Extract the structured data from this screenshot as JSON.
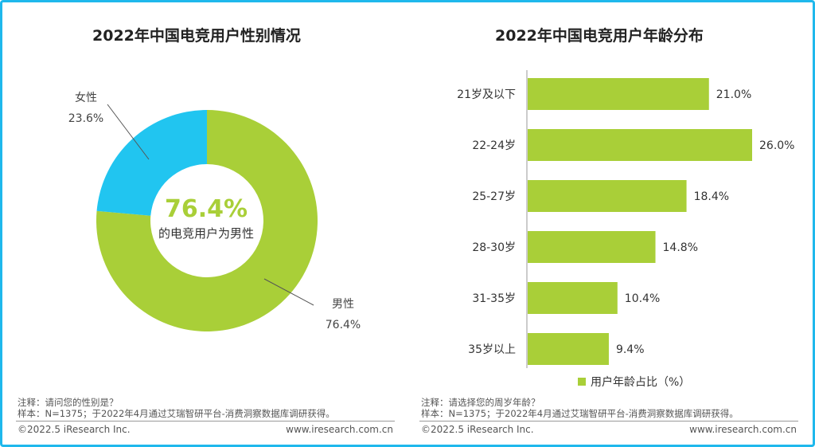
{
  "colors": {
    "green": "#a9cf38",
    "blue": "#21c5f0",
    "border": "#1fb8ec"
  },
  "left_panel": {
    "title": "2022年中国电竞用户性别情况",
    "center_value": "76.4%",
    "center_caption": "的电竞用户为男性",
    "note_1": "注释：请问您的性别是？",
    "note_2": "样本：N=1375；于2022年4月通过艾瑞智研平台-消费洞察数据库调研获得。",
    "footer_left": "©2022.5 iResearch Inc.",
    "footer_right": "www.iresearch.com.cn"
  },
  "right_panel": {
    "title": "2022年中国电竞用户年龄分布",
    "note_1": "注释：请选择您的周岁年龄？",
    "note_2": "样本：N=1375；于2022年4月通过艾瑞智研平台-消费洞察数据库调研获得。",
    "footer_left": "©2022.5 iResearch Inc.",
    "footer_right": "www.iresearch.com.cn"
  },
  "chart_data": [
    {
      "type": "pie",
      "title": "2022年中国电竞用户性别情况",
      "donut": true,
      "labels": [
        "男性",
        "女性"
      ],
      "values": [
        76.4,
        23.6
      ],
      "value_labels": [
        "76.4%",
        "23.6%"
      ],
      "colors": [
        "#a9cf38",
        "#21c5f0"
      ]
    },
    {
      "type": "bar",
      "orientation": "horizontal",
      "title": "2022年中国电竞用户年龄分布",
      "categories": [
        "21岁及以下",
        "22-24岁",
        "25-27岁",
        "28-30岁",
        "31-35岁",
        "35岁以上"
      ],
      "series": [
        {
          "name": "用户年龄占比（%）",
          "values": [
            21.0,
            26.0,
            18.4,
            14.8,
            10.4,
            9.4
          ]
        }
      ],
      "value_labels": [
        "21.0%",
        "26.0%",
        "18.4%",
        "14.8%",
        "10.4%",
        "9.4%"
      ],
      "xlim": [
        0,
        26.0
      ],
      "legend": "bottom",
      "grid": false
    }
  ]
}
